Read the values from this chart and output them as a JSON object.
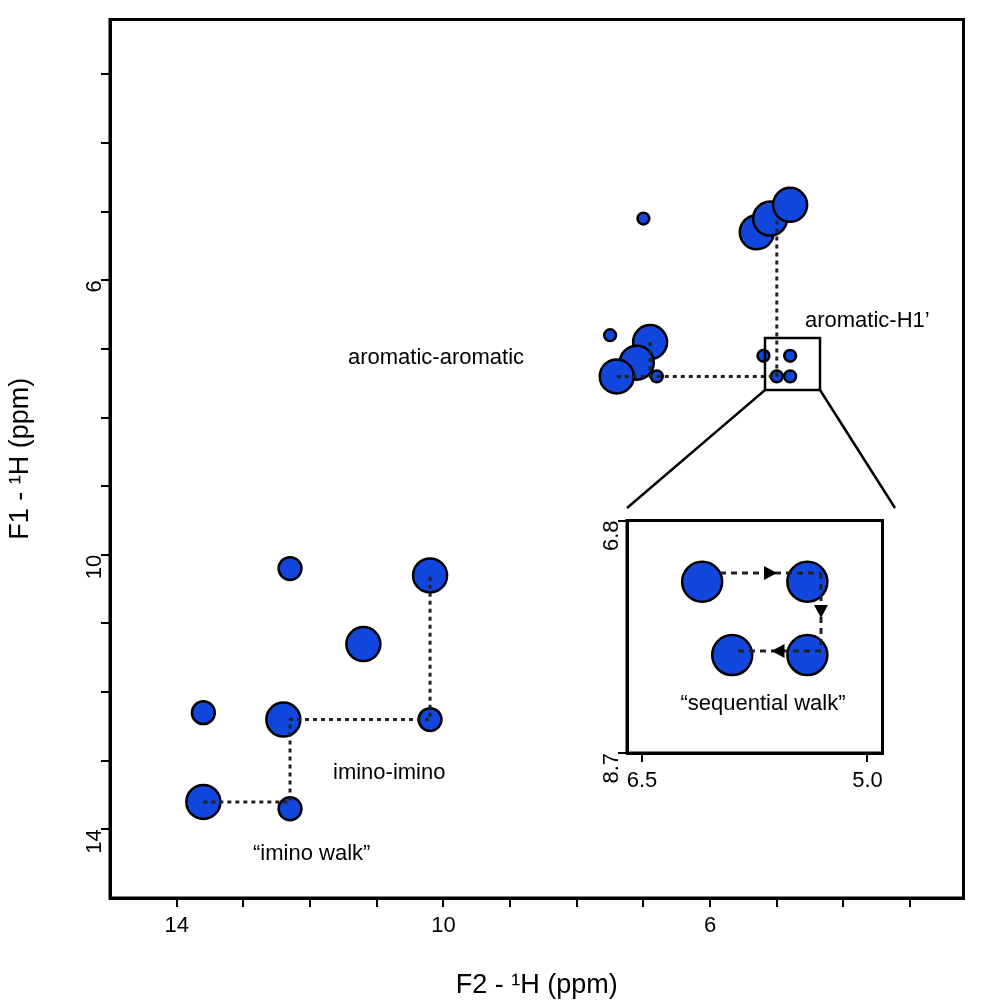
{
  "chart_data": [
    {
      "type": "bubble",
      "xlabel": "F2 - ¹H (ppm)",
      "ylabel": "F1 - ¹H (ppm)",
      "xlim": [
        15.0,
        2.2
      ],
      "ylim": [
        15.0,
        2.2
      ],
      "xticks": [
        {
          "value": 3,
          "label": null
        },
        {
          "value": 4,
          "label": null
        },
        {
          "value": 5,
          "label": null
        },
        6,
        {
          "value": 7,
          "label": null
        },
        {
          "value": 8,
          "label": null
        },
        {
          "value": 9,
          "label": null
        },
        10,
        {
          "value": 11,
          "label": null
        },
        {
          "value": 12,
          "label": null
        },
        {
          "value": 13,
          "label": null
        },
        14
      ],
      "yticks": [
        {
          "value": 3,
          "label": null
        },
        {
          "value": 4,
          "label": null
        },
        {
          "value": 5,
          "label": null
        },
        6,
        {
          "value": 7,
          "label": null
        },
        {
          "value": 8,
          "label": null
        },
        {
          "value": 9,
          "label": null
        },
        10,
        {
          "value": 11,
          "label": null
        },
        {
          "value": 12,
          "label": null
        },
        {
          "value": 13,
          "label": null
        },
        14
      ],
      "grid": false,
      "legend": false,
      "marker": "circle",
      "series": [
        {
          "type": "bubble",
          "color": "#1147dd",
          "x": [
            5.3,
            5.1,
            4.8,
            7.0,
            7.5,
            6.9,
            7.1,
            7.4,
            6.8,
            5.2,
            4.8,
            5.0,
            4.8,
            12.3,
            10.2,
            11.2,
            13.6,
            12.4,
            10.2,
            13.6,
            12.3
          ],
          "values": [
            5.3,
            5.1,
            4.9,
            5.1,
            6.8,
            6.9,
            7.2,
            7.4,
            7.4,
            7.1,
            7.1,
            7.4,
            7.4,
            10.2,
            10.3,
            11.3,
            12.3,
            12.4,
            12.4,
            13.6,
            13.7
          ],
          "sizes": [
            1,
            1,
            1,
            0.12,
            0.12,
            1,
            1,
            1,
            0.12,
            0.12,
            0.12,
            0.12,
            0.12,
            0.45,
            1,
            1,
            0.45,
            1,
            0.45,
            1,
            0.45
          ]
        },
        {
          "type": "line",
          "color": "#222222",
          "line_style": "dotted",
          "marker": "none",
          "x": [
            7.4,
            5.0,
            5.0
          ],
          "values": [
            7.4,
            7.4,
            5.1
          ]
        },
        {
          "type": "line",
          "color": "#222222",
          "line_style": "dotted",
          "marker": "none",
          "x": [
            6.9,
            6.9
          ],
          "values": [
            6.9,
            7.4
          ]
        },
        {
          "type": "line",
          "color": "#222222",
          "line_style": "dotted",
          "marker": "none",
          "x": [
            13.6,
            12.3,
            12.3,
            10.2,
            10.2
          ],
          "values": [
            13.6,
            13.6,
            12.4,
            12.4,
            10.3
          ]
        }
      ],
      "annotations": [
        "aromatic-aromatic",
        "aromatic-H1’",
        "imino-imino",
        "“imino walk”"
      ]
    },
    {
      "type": "bubble",
      "xlim": [
        6.6,
        4.9
      ],
      "ylim": [
        8.7,
        6.8
      ],
      "xticks": [
        6.5,
        {
          "value": 5,
          "label": "5.0"
        }
      ],
      "yticks": [
        6.8,
        8.7
      ],
      "grid": false,
      "legend": false,
      "marker": "circle",
      "series": [
        {
          "type": "bubble",
          "color": "#1147dd",
          "x": [
            6.1,
            5.4,
            5.9,
            5.4
          ],
          "values": [
            7.3,
            7.3,
            7.9,
            7.9
          ],
          "sizes": [
            1,
            1,
            1,
            1
          ]
        }
      ],
      "annotations": [
        "“sequential walk”"
      ]
    }
  ]
}
